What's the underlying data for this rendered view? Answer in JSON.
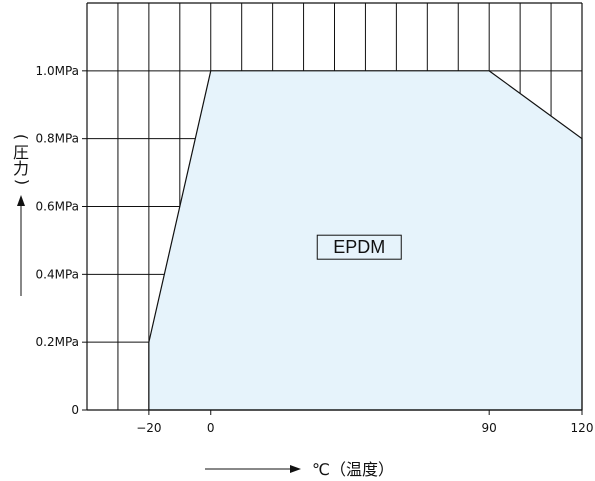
{
  "chart_data": {
    "type": "area",
    "xlabel": "℃（温度）",
    "ylabel_chars": [
      "(",
      "圧",
      "力",
      ")"
    ],
    "x_ticks": [
      {
        "value": -20,
        "label": "−20"
      },
      {
        "value": 0,
        "label": "0"
      },
      {
        "value": 90,
        "label": "90"
      },
      {
        "value": 120,
        "label": "120"
      }
    ],
    "y_ticks": [
      {
        "value": 0,
        "label": "0"
      },
      {
        "value": 0.2,
        "label": "0.2MPa"
      },
      {
        "value": 0.4,
        "label": "0.4MPa"
      },
      {
        "value": 0.6,
        "label": "0.6MPa"
      },
      {
        "value": 0.8,
        "label": "0.8MPa"
      },
      {
        "value": 1.0,
        "label": "1.0MPa"
      }
    ],
    "xlim": [
      -40,
      120
    ],
    "ylim": [
      0,
      1.2
    ],
    "grid": true,
    "series": [
      {
        "name": "EPDM",
        "color": "#e6f3fb",
        "x": [
          -20,
          -20,
          0,
          90,
          120,
          120
        ],
        "y": [
          0,
          0.2,
          1.0,
          1.0,
          0.8,
          0
        ]
      }
    ]
  }
}
